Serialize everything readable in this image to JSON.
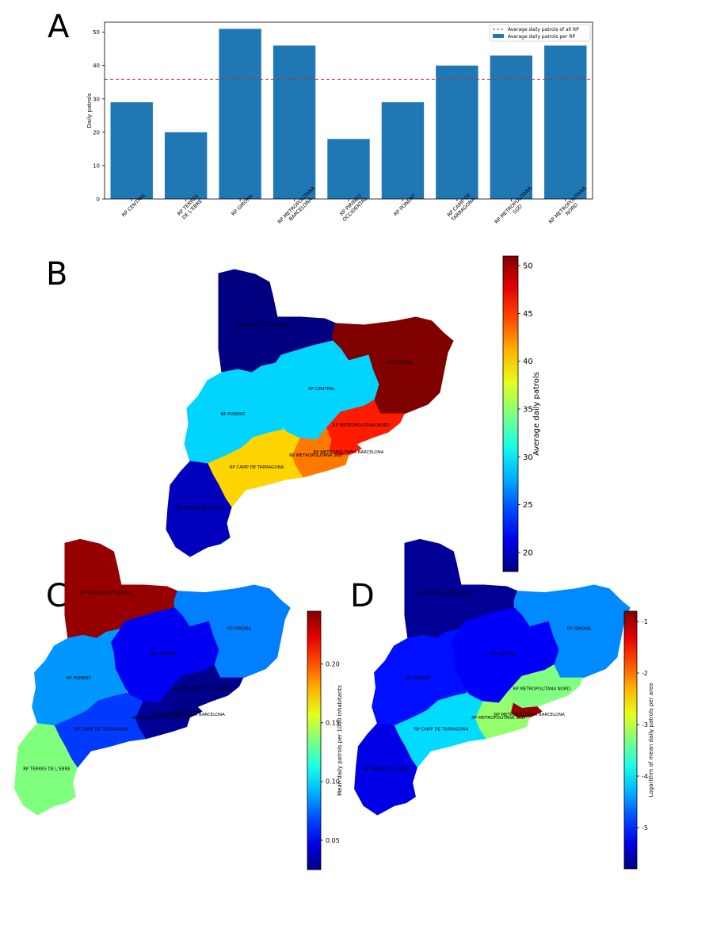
{
  "panels": {
    "a": {
      "letter": "A"
    },
    "b": {
      "letter": "B"
    },
    "c": {
      "letter": "C"
    },
    "d": {
      "letter": "D"
    }
  },
  "chart_data": [
    {
      "type": "bar",
      "panel": "A",
      "ylabel": "Daily patrols",
      "xlabel": "",
      "ylim": [
        0,
        53
      ],
      "yticks": [
        0,
        10,
        20,
        30,
        40,
        50
      ],
      "categories": [
        "RP CENTRAL",
        "RP TERRES DE L'EBRE",
        "RP GIRONA",
        "RP METROPOLITANA BARCELONA",
        "RP PIRINEU OCCIDENTAL",
        "RP PONENT",
        "RP CAMP DE TARRAGONA",
        "RP METROPOLITANA SUD",
        "RP METROPOLITANA NORD"
      ],
      "category_lines": [
        [
          "RP CENTRAL"
        ],
        [
          "RP TERRES",
          "DE L'EBRE"
        ],
        [
          "RP GIRONA"
        ],
        [
          "RP METROPOLITANA",
          "BARCELONA"
        ],
        [
          "RP PIRINEU",
          "OCCIDENTAL"
        ],
        [
          "RP PONENT"
        ],
        [
          "RP CAMP DE",
          "TARRAGONA"
        ],
        [
          "RP METROPOLITANA",
          "SUD"
        ],
        [
          "RP METROPOLITANA",
          "NORD"
        ]
      ],
      "series": [
        {
          "name": "Average daily patrols per RP",
          "values": [
            29,
            20,
            51,
            46,
            18,
            29,
            40,
            43,
            46
          ],
          "color": "#1f77b4"
        }
      ],
      "reference_lines": [
        {
          "name": "Average daily patrols of all RP",
          "value": 35.8,
          "color": "#d62728",
          "style": "dashed"
        }
      ],
      "legend_position": "top-right",
      "grid": false
    },
    {
      "type": "choropleth",
      "panel": "B",
      "colorbar_label": "Average daily patrols",
      "colorbar_range": [
        18,
        51
      ],
      "colorbar_ticks": [
        20,
        25,
        30,
        35,
        40,
        45,
        50
      ],
      "colormap": "jet",
      "regions": [
        {
          "name": "RP PIRINEU OCCIDENTAL",
          "value": 18
        },
        {
          "name": "RP GIRONA",
          "value": 51
        },
        {
          "name": "RP CENTRAL",
          "value": 29
        },
        {
          "name": "RP PONENT",
          "value": 29
        },
        {
          "name": "RP METROPOLITANA NORD",
          "value": 46
        },
        {
          "name": "RP METROPOLITANA BARCELONA",
          "value": 46
        },
        {
          "name": "RP METROPOLITANA SUD",
          "value": 43
        },
        {
          "name": "RP CAMP DE TARRAGONA",
          "value": 40
        },
        {
          "name": "RP TERRES DE L'EBRE",
          "value": 20
        }
      ]
    },
    {
      "type": "choropleth",
      "panel": "C",
      "colorbar_label": "Mean daily patrols per 1000 inhabitants",
      "colorbar_range": [
        0.025,
        0.245
      ],
      "colorbar_ticks": [
        "0.05",
        "0.10",
        "0.15",
        "0.20"
      ],
      "colormap": "jet",
      "regions": [
        {
          "name": "RP PIRINEU OCCIDENTAL",
          "value": 0.24
        },
        {
          "name": "RP GIRONA",
          "value": 0.08
        },
        {
          "name": "RP CENTRAL",
          "value": 0.05
        },
        {
          "name": "RP PONENT",
          "value": 0.085
        },
        {
          "name": "RP METROPOLITANA NORD",
          "value": 0.028
        },
        {
          "name": "RP METROPOLITANA BARCELONA",
          "value": 0.025
        },
        {
          "name": "RP METROPOLITANA SUD",
          "value": 0.03
        },
        {
          "name": "RP CAMP DE TARRAGONA",
          "value": 0.065
        },
        {
          "name": "RP TERRES DE L'EBRE",
          "value": 0.135
        }
      ]
    },
    {
      "type": "choropleth",
      "panel": "D",
      "colorbar_label": "Logarithm of mean daily patrols per area",
      "colorbar_range": [
        -5.8,
        -0.8
      ],
      "colorbar_ticks": [
        "-5",
        "-4",
        "-3",
        "-2",
        "-1"
      ],
      "colormap": "jet",
      "regions": [
        {
          "name": "RP PIRINEU OCCIDENTAL",
          "value": -5.7
        },
        {
          "name": "RP GIRONA",
          "value": -4.5
        },
        {
          "name": "RP CENTRAL",
          "value": -5.2
        },
        {
          "name": "RP PONENT",
          "value": -5.1
        },
        {
          "name": "RP METROPOLITANA NORD",
          "value": -3.3
        },
        {
          "name": "RP METROPOLITANA BARCELONA",
          "value": -0.9
        },
        {
          "name": "RP METROPOLITANA SUD",
          "value": -3.2
        },
        {
          "name": "RP CAMP DE TARRAGONA",
          "value": -4.1
        },
        {
          "name": "RP TERRES DE L'EBRE",
          "value": -5.3
        }
      ]
    }
  ]
}
